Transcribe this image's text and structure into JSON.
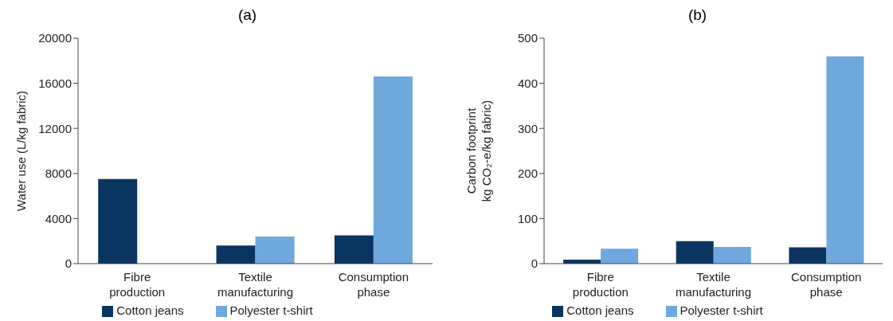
{
  "chart_data": [
    {
      "type": "bar",
      "title": "(a)",
      "ylabel": "Water use (L/kg fabric)",
      "categories": [
        "Fibre\nproduction",
        "Textile\nmanufacturing",
        "Consumption\nphase"
      ],
      "series": [
        {
          "name": "Cotton jeans",
          "color": "#0a3560",
          "values": [
            7500,
            1600,
            2500
          ]
        },
        {
          "name": "Polyester t-shirt",
          "color": "#6fa8dc",
          "values": [
            0,
            2400,
            16600
          ]
        }
      ],
      "ylim": [
        0,
        20000
      ],
      "yticks": [
        0,
        4000,
        8000,
        12000,
        16000,
        20000
      ],
      "grid": false,
      "legend": "bottom"
    },
    {
      "type": "bar",
      "title": "(b)",
      "ylabel": "Carbon footprint\nkg CO₂-e/kg fabric)",
      "categories": [
        "Fibre\nproduction",
        "Textile\nmanufacturing",
        "Consumption\nphase"
      ],
      "series": [
        {
          "name": "Cotton jeans",
          "color": "#0a3560",
          "values": [
            9,
            50,
            36
          ]
        },
        {
          "name": "Polyester t-shirt",
          "color": "#6fa8dc",
          "values": [
            33,
            37,
            460
          ]
        }
      ],
      "ylim": [
        0,
        500
      ],
      "yticks": [
        0,
        100,
        200,
        300,
        400,
        500
      ],
      "grid": false,
      "legend": "bottom"
    }
  ]
}
